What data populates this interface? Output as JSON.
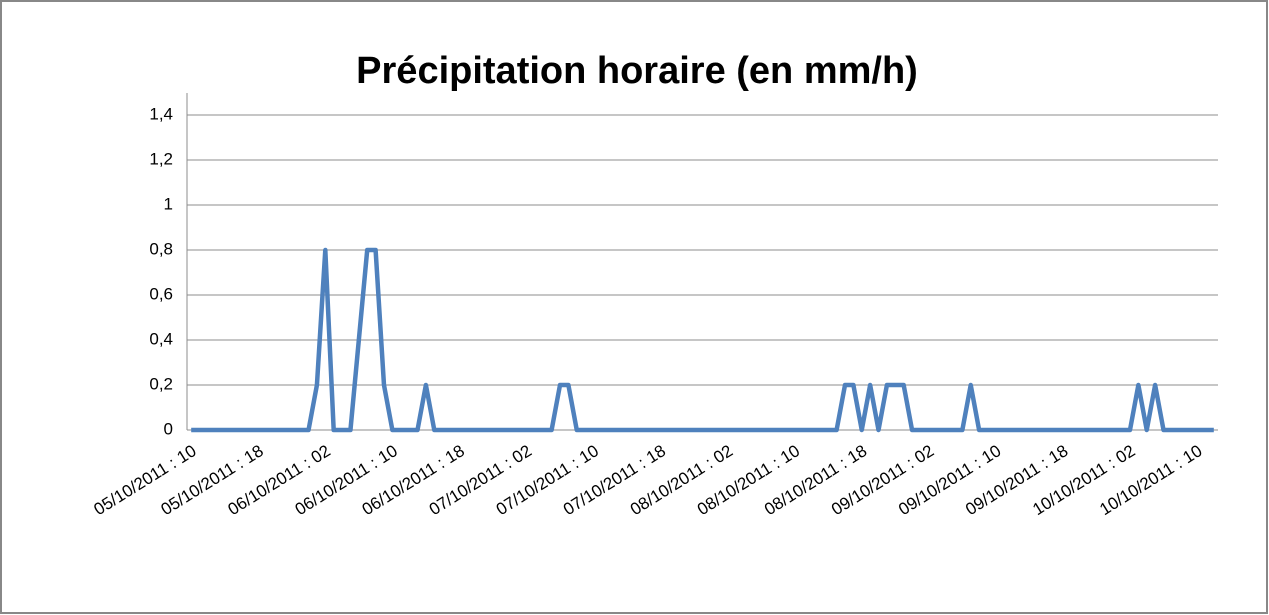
{
  "chart_data": {
    "type": "line",
    "title": "Précipitation horaire (en mm/h)",
    "categories": [
      "05/10/2011 : 10",
      null,
      null,
      null,
      null,
      null,
      null,
      null,
      "05/10/2011 : 18",
      null,
      null,
      null,
      null,
      null,
      null,
      null,
      "06/10/2011 : 02",
      null,
      null,
      null,
      null,
      null,
      null,
      null,
      "06/10/2011 : 10",
      null,
      null,
      null,
      null,
      null,
      null,
      null,
      "06/10/2011 : 18",
      null,
      null,
      null,
      null,
      null,
      null,
      null,
      "07/10/2011 : 02",
      null,
      null,
      null,
      null,
      null,
      null,
      null,
      "07/10/2011 : 10",
      null,
      null,
      null,
      null,
      null,
      null,
      null,
      "07/10/2011 : 18",
      null,
      null,
      null,
      null,
      null,
      null,
      null,
      "08/10/2011 : 02",
      null,
      null,
      null,
      null,
      null,
      null,
      null,
      "08/10/2011 : 10",
      null,
      null,
      null,
      null,
      null,
      null,
      null,
      "08/10/2011 : 18",
      null,
      null,
      null,
      null,
      null,
      null,
      null,
      "09/10/2011 : 02",
      null,
      null,
      null,
      null,
      null,
      null,
      null,
      "09/10/2011 : 10",
      null,
      null,
      null,
      null,
      null,
      null,
      null,
      "09/10/2011 : 18",
      null,
      null,
      null,
      null,
      null,
      null,
      null,
      "10/10/2011 : 02",
      null,
      null,
      null,
      null,
      null,
      null,
      null,
      "10/10/2011 : 10",
      null,
      null
    ],
    "values": [
      0,
      0,
      0,
      0,
      0,
      0,
      0,
      0,
      0,
      0,
      0,
      0,
      0,
      0,
      0,
      0.2,
      0.8,
      0,
      0,
      0,
      0.4,
      0.8,
      0.8,
      0.2,
      0,
      0,
      0,
      0,
      0.2,
      0,
      0,
      0,
      0,
      0,
      0,
      0,
      0,
      0,
      0,
      0,
      0,
      0,
      0,
      0,
      0.2,
      0.2,
      0,
      0,
      0,
      0,
      0,
      0,
      0,
      0,
      0,
      0,
      0,
      0,
      0,
      0,
      0,
      0,
      0,
      0,
      0,
      0,
      0,
      0,
      0,
      0,
      0,
      0,
      0,
      0,
      0,
      0,
      0,
      0,
      0.2,
      0.2,
      0,
      0.2,
      0,
      0.2,
      0.2,
      0.2,
      0,
      0,
      0,
      0,
      0,
      0,
      0,
      0.2,
      0,
      0,
      0,
      0,
      0,
      0,
      0,
      0,
      0,
      0,
      0,
      0,
      0,
      0,
      0,
      0,
      0,
      0,
      0,
      0.2,
      0,
      0.2,
      0,
      0,
      0,
      0,
      0,
      0,
      0
    ],
    "color": "#4f81bd",
    "ylim": [
      0,
      1.4
    ],
    "yticks": [
      0,
      {
        "value": 0.2,
        "label": "0,2"
      },
      {
        "value": 0.4,
        "label": "0,4"
      },
      {
        "value": 0.6,
        "label": "0,6"
      },
      {
        "value": 0.8,
        "label": "0,8"
      },
      1,
      {
        "value": 1.2,
        "label": "1,2"
      },
      {
        "value": 1.4,
        "label": "1,4"
      }
    ],
    "grid": true
  }
}
